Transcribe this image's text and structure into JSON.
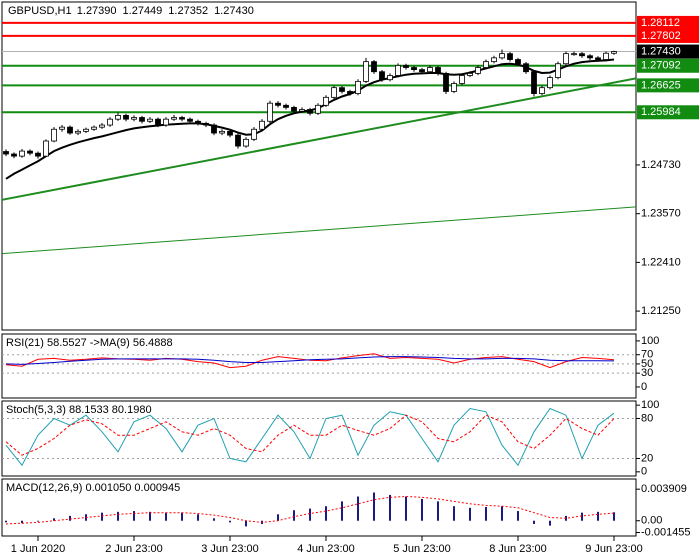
{
  "chart_data": [
    {
      "type": "candlestick",
      "title": "GBPUSD,H1",
      "header_values": [
        "1.27390",
        "1.27449",
        "1.27352",
        "1.27430"
      ],
      "xlim": [
        -0.5,
        78.75
      ],
      "xticks": [
        {
          "value": 4,
          "label": "1 Jun 2020"
        },
        {
          "value": 16,
          "label": "2 Jun 23:00"
        },
        {
          "value": 28,
          "label": "3 Jun 23:00"
        },
        {
          "value": 40,
          "label": "4 Jun 23:00"
        },
        {
          "value": 52,
          "label": "5 Jun 23:00"
        },
        {
          "value": 64,
          "label": "8 Jun 23:00"
        },
        {
          "value": 76,
          "label": "9 Jun 23:00"
        }
      ],
      "ylim": [
        1.208,
        1.2861
      ],
      "yticks": [
        {
          "value": 1.2473,
          "label": "1.24730"
        },
        {
          "value": 1.2357,
          "label": "1.23570"
        },
        {
          "value": 1.2241,
          "label": "1.22410"
        },
        {
          "value": 1.2125,
          "label": "1.21250"
        }
      ],
      "up_color": "#ffffff",
      "down_color": "#000000",
      "open": [
        1.2505,
        1.2499,
        1.2494,
        1.2506,
        1.2501,
        1.2494,
        1.253,
        1.2558,
        1.2563,
        1.2549,
        1.2553,
        1.2558,
        1.2563,
        1.2568,
        1.2582,
        1.2591,
        1.2582,
        1.2586,
        1.2577,
        1.2582,
        1.2568,
        1.2582,
        1.2586,
        1.2582,
        1.2577,
        1.2572,
        1.2568,
        1.2549,
        1.2553,
        1.2544,
        1.2518,
        1.2534,
        1.2558,
        1.2577,
        1.262,
        1.2615,
        1.261,
        1.2601,
        1.2605,
        1.2596,
        1.2615,
        1.2634,
        1.2657,
        1.2648,
        1.2643,
        1.2672,
        1.2719,
        1.2695,
        1.2676,
        1.2686,
        1.271,
        1.2705,
        1.27,
        1.2695,
        1.2705,
        1.2691,
        1.2648,
        1.2667,
        1.2686,
        1.2691,
        1.2705,
        1.2719,
        1.2728,
        1.2738,
        1.2724,
        1.2714,
        1.2695,
        1.2643,
        1.2657,
        1.2681,
        1.2714,
        1.2738,
        1.2738,
        1.2733,
        1.2728,
        1.2724,
        1.2739
      ],
      "high": [
        1.251,
        1.2503,
        1.2511,
        1.251,
        1.2505,
        1.2534,
        1.2563,
        1.2568,
        1.2567,
        1.2558,
        1.2562,
        1.2567,
        1.2573,
        1.2587,
        1.2598,
        1.2595,
        1.2591,
        1.259,
        1.2587,
        1.2586,
        1.2587,
        1.2592,
        1.259,
        1.2586,
        1.2581,
        1.2576,
        1.2572,
        1.2558,
        1.2557,
        1.2548,
        1.2539,
        1.2563,
        1.2582,
        1.2626,
        1.2625,
        1.2619,
        1.2614,
        1.261,
        1.2609,
        1.262,
        1.2639,
        1.2662,
        1.2661,
        1.2652,
        1.2677,
        1.2728,
        1.2723,
        1.2699,
        1.2691,
        1.2715,
        1.2714,
        1.2709,
        1.2704,
        1.271,
        1.2709,
        1.2695,
        1.2672,
        1.2691,
        1.2696,
        1.271,
        1.2724,
        1.2733,
        1.2748,
        1.2742,
        1.2728,
        1.2718,
        1.2699,
        1.2662,
        1.2686,
        1.2719,
        1.2743,
        1.2743,
        1.2742,
        1.2737,
        1.2732,
        1.2743,
        1.27449
      ],
      "low": [
        1.2494,
        1.2489,
        1.249,
        1.2496,
        1.2488,
        1.2492,
        1.2527,
        1.2552,
        1.2545,
        1.2544,
        1.2549,
        1.2554,
        1.2559,
        1.2564,
        1.2578,
        1.2577,
        1.2577,
        1.2572,
        1.2573,
        1.2563,
        1.2564,
        1.2578,
        1.2577,
        1.2572,
        1.2567,
        1.2563,
        1.2544,
        1.2544,
        1.2539,
        1.2512,
        1.2514,
        1.253,
        1.2554,
        1.2573,
        1.261,
        1.2605,
        1.2596,
        1.2597,
        1.2591,
        1.2592,
        1.2611,
        1.263,
        1.2643,
        1.2638,
        1.2639,
        1.2668,
        1.269,
        1.2671,
        1.2672,
        1.2682,
        1.27,
        1.2695,
        1.269,
        1.2691,
        1.2686,
        1.2642,
        1.2644,
        1.2663,
        1.2682,
        1.2687,
        1.2701,
        1.2715,
        1.2724,
        1.2719,
        1.2709,
        1.269,
        1.2636,
        1.2639,
        1.2653,
        1.2677,
        1.271,
        1.2733,
        1.2728,
        1.2723,
        1.2719,
        1.272,
        1.27352
      ],
      "close": [
        1.2499,
        1.2494,
        1.2506,
        1.2501,
        1.2494,
        1.253,
        1.2558,
        1.2563,
        1.2549,
        1.2553,
        1.2558,
        1.2563,
        1.2568,
        1.2582,
        1.2591,
        1.2582,
        1.2586,
        1.2577,
        1.2582,
        1.2568,
        1.2582,
        1.2586,
        1.2582,
        1.2577,
        1.2572,
        1.2568,
        1.2549,
        1.2553,
        1.2544,
        1.2518,
        1.2534,
        1.2558,
        1.2577,
        1.262,
        1.2615,
        1.261,
        1.2601,
        1.2605,
        1.2596,
        1.2615,
        1.2634,
        1.2657,
        1.2648,
        1.2643,
        1.2672,
        1.2719,
        1.2695,
        1.2676,
        1.2686,
        1.271,
        1.2705,
        1.27,
        1.2695,
        1.2705,
        1.2691,
        1.2648,
        1.2667,
        1.2686,
        1.2691,
        1.2705,
        1.2719,
        1.2728,
        1.2738,
        1.2724,
        1.2714,
        1.2695,
        1.2643,
        1.2657,
        1.2681,
        1.2714,
        1.2738,
        1.2738,
        1.2733,
        1.2728,
        1.2724,
        1.2739,
        1.2743
      ],
      "ma": {
        "color": "#000000",
        "values": [
          1.244,
          1.2452,
          1.2462,
          1.2472,
          1.2482,
          1.2494,
          1.2506,
          1.2514,
          1.2521,
          1.2527,
          1.2532,
          1.2537,
          1.2541,
          1.2546,
          1.2551,
          1.2556,
          1.256,
          1.2563,
          1.2565,
          1.2567,
          1.2569,
          1.257,
          1.2571,
          1.2572,
          1.2572,
          1.257,
          1.2566,
          1.2562,
          1.2557,
          1.255,
          1.2545,
          1.2546,
          1.2555,
          1.257,
          1.2582,
          1.259,
          1.2596,
          1.26,
          1.2603,
          1.2608,
          1.2618,
          1.2628,
          1.2636,
          1.2642,
          1.265,
          1.2662,
          1.267,
          1.2676,
          1.268,
          1.2684,
          1.2688,
          1.269,
          1.2691,
          1.2692,
          1.2692,
          1.2689,
          1.2688,
          1.2689,
          1.2693,
          1.2698,
          1.2703,
          1.2708,
          1.2713,
          1.2714,
          1.2712,
          1.2706,
          1.2697,
          1.2692,
          1.2693,
          1.27,
          1.2708,
          1.2714,
          1.2718,
          1.272,
          1.2721,
          1.2722,
          1.2724
        ]
      },
      "trend_lines": [
        {
          "x": [
            -0.5,
            78.75
          ],
          "values": [
            1.239,
            1.2679
          ],
          "color": "#1e8c1e"
        },
        {
          "x": [
            -0.5,
            78.75
          ],
          "values": [
            1.2262,
            1.2373
          ],
          "color": "#1e8c1e"
        }
      ],
      "levels": [
        {
          "value": 1.28112,
          "color": "#ff0000"
        },
        {
          "value": 1.27802,
          "color": "#ff0000"
        },
        {
          "value": 1.27092,
          "color": "#118c11"
        },
        {
          "value": 1.26625,
          "color": "#118c11"
        },
        {
          "value": 1.25984,
          "color": "#118c11"
        }
      ],
      "last_price": {
        "value": 1.2743,
        "label": "1.27430",
        "color": "#000000"
      }
    },
    {
      "type": "line",
      "title": "RSI(21) 58.5527 ->MA(9) 56.4888",
      "xlim": [
        -0.5,
        78.75
      ],
      "x": [
        0,
        2,
        4,
        6,
        8,
        10,
        12,
        14,
        16,
        18,
        20,
        22,
        24,
        26,
        28,
        30,
        32,
        34,
        36,
        38,
        40,
        42,
        44,
        46,
        48,
        50,
        52,
        54,
        56,
        58,
        60,
        62,
        64,
        66,
        68,
        70,
        72,
        74,
        76
      ],
      "ylim": [
        -24,
        115
      ],
      "yticks": [
        100,
        70,
        50,
        30,
        0
      ],
      "level_lines": [
        70,
        50,
        30
      ],
      "series": [
        {
          "color": "#ff0000",
          "values": [
            48,
            45,
            60,
            62,
            58,
            60,
            63,
            61,
            60,
            58,
            62,
            60,
            55,
            52,
            42,
            45,
            58,
            66,
            62,
            58,
            57,
            63,
            68,
            72,
            62,
            64,
            62,
            60,
            52,
            60,
            64,
            66,
            60,
            55,
            42,
            55,
            64,
            62,
            59
          ]
        },
        {
          "color": "#0000cc",
          "values": [
            50,
            49,
            51,
            53,
            56,
            58,
            60,
            61,
            61,
            61,
            61,
            61,
            60,
            58,
            55,
            53,
            53,
            55,
            57,
            59,
            60,
            61,
            63,
            65,
            66,
            66,
            65,
            64,
            62,
            61,
            61,
            62,
            62,
            61,
            58,
            57,
            57,
            57,
            56.5
          ]
        }
      ]
    },
    {
      "type": "line",
      "title": "Stoch(5,3,3) 88.1533 80.1980",
      "xlim": [
        -0.5,
        78.75
      ],
      "x": [
        0,
        2,
        4,
        6,
        8,
        10,
        12,
        14,
        16,
        18,
        20,
        22,
        24,
        26,
        28,
        30,
        32,
        34,
        36,
        38,
        40,
        42,
        44,
        46,
        48,
        50,
        52,
        54,
        56,
        58,
        60,
        62,
        64,
        66,
        68,
        70,
        72,
        74,
        76
      ],
      "ylim": [
        -6.25,
        106.25
      ],
      "yticks": [
        100,
        80,
        20,
        0
      ],
      "level_lines": [
        80,
        20
      ],
      "series": [
        {
          "color": "#20a0b0",
          "values": [
            40,
            10,
            55,
            80,
            70,
            85,
            60,
            30,
            75,
            85,
            65,
            30,
            70,
            80,
            20,
            15,
            50,
            85,
            60,
            20,
            80,
            85,
            25,
            70,
            90,
            85,
            50,
            15,
            70,
            95,
            90,
            40,
            10,
            60,
            95,
            85,
            20,
            70,
            88
          ]
        },
        {
          "color": "#ff0000",
          "dashed": true,
          "values": [
            45,
            25,
            35,
            50,
            70,
            78,
            72,
            55,
            55,
            65,
            75,
            60,
            55,
            65,
            55,
            35,
            30,
            55,
            70,
            55,
            55,
            70,
            62,
            55,
            65,
            85,
            75,
            50,
            45,
            60,
            85,
            75,
            45,
            35,
            55,
            80,
            65,
            55,
            80
          ]
        }
      ]
    },
    {
      "type": "macd",
      "title": "MACD(12,26,9) 0.001050 0.000945",
      "xlim": [
        -0.5,
        78.75
      ],
      "x": [
        0,
        2,
        4,
        6,
        8,
        10,
        12,
        14,
        16,
        18,
        20,
        22,
        24,
        26,
        28,
        30,
        32,
        34,
        36,
        38,
        40,
        42,
        44,
        46,
        48,
        50,
        52,
        54,
        56,
        58,
        60,
        62,
        64,
        66,
        68,
        70,
        72,
        74,
        76
      ],
      "ylim": [
        -0.00189,
        0.00517
      ],
      "yticks": [
        0.003909,
        {
          "value": 0,
          "label": "0.00"
        },
        -0.001455
      ],
      "series": [
        {
          "color": "#1a1a80",
          "values": [
            -0.0002,
            -0.0003,
            -0.0001,
            0.0003,
            0.0006,
            0.0008,
            0.001,
            0.0011,
            0.0012,
            0.0011,
            0.001,
            0.001,
            0.0008,
            0.0003,
            -0.0002,
            -0.0007,
            -0.0004,
            0.0008,
            0.0013,
            0.0015,
            0.0018,
            0.0024,
            0.003,
            0.0035,
            0.0032,
            0.003,
            0.0027,
            0.0024,
            0.0018,
            0.0016,
            0.0017,
            0.0018,
            0.0012,
            -0.0004,
            -0.0006,
            0.0006,
            0.001,
            0.0011,
            0.00105
          ]
        },
        {
          "color": "#ff0000",
          "dashed": true,
          "values": [
            -0.0004,
            -0.0003,
            -0.0002,
            0,
            0.0002,
            0.0004,
            0.0006,
            0.0008,
            0.0009,
            0.001,
            0.001,
            0.001,
            0.0009,
            0.0007,
            0.0004,
            0,
            -0.0002,
            0,
            0.0005,
            0.0009,
            0.0012,
            0.0016,
            0.0021,
            0.0026,
            0.0029,
            0.003,
            0.0029,
            0.0027,
            0.0024,
            0.0021,
            0.0019,
            0.0018,
            0.0016,
            0.001,
            0.0004,
            0.0003,
            0.0006,
            0.0008,
            0.000945
          ]
        }
      ]
    }
  ]
}
